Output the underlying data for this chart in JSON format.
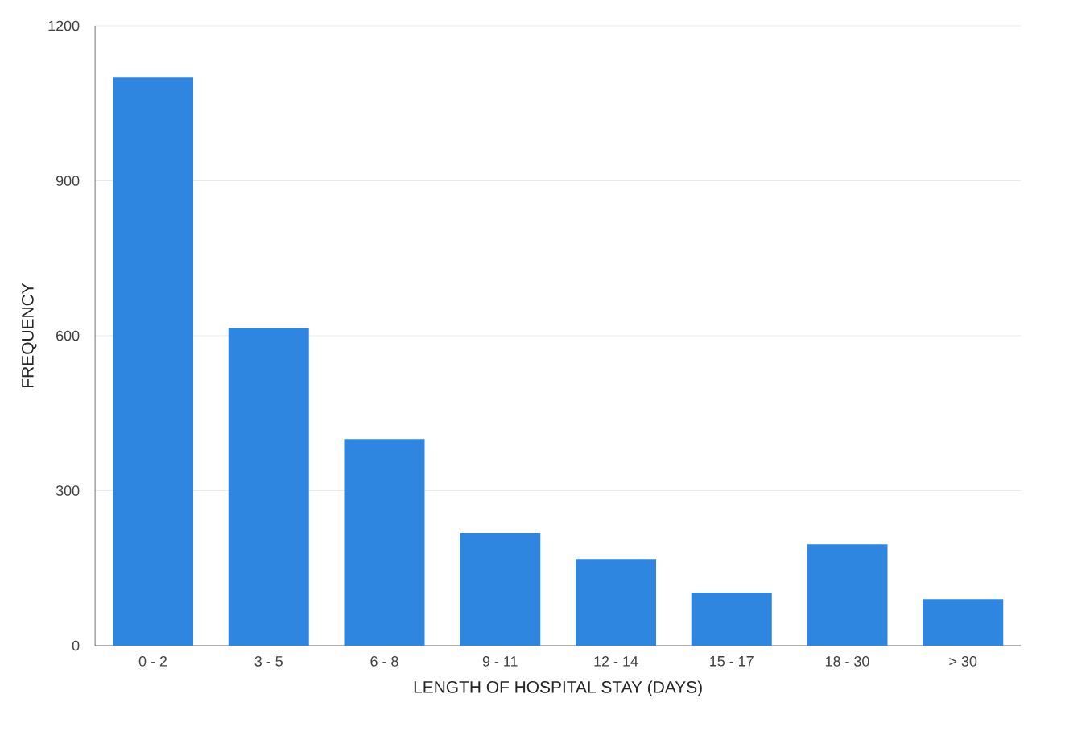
{
  "chart_data": {
    "type": "bar",
    "xlabel": "LENGTH OF HOSPITAL STAY (DAYS)",
    "ylabel": "FREQUENCY",
    "categories": [
      "0 - 2",
      "3 - 5",
      "6 - 8",
      "9 - 11",
      "12 - 14",
      "15 - 17",
      "18 - 30",
      "> 30"
    ],
    "values": [
      1100,
      615,
      400,
      218,
      168,
      103,
      196,
      90
    ],
    "color": "#2f86e0",
    "ylim": [
      0,
      1200
    ],
    "yticks": [
      0,
      300,
      600,
      900,
      1200
    ],
    "grid": "y"
  }
}
